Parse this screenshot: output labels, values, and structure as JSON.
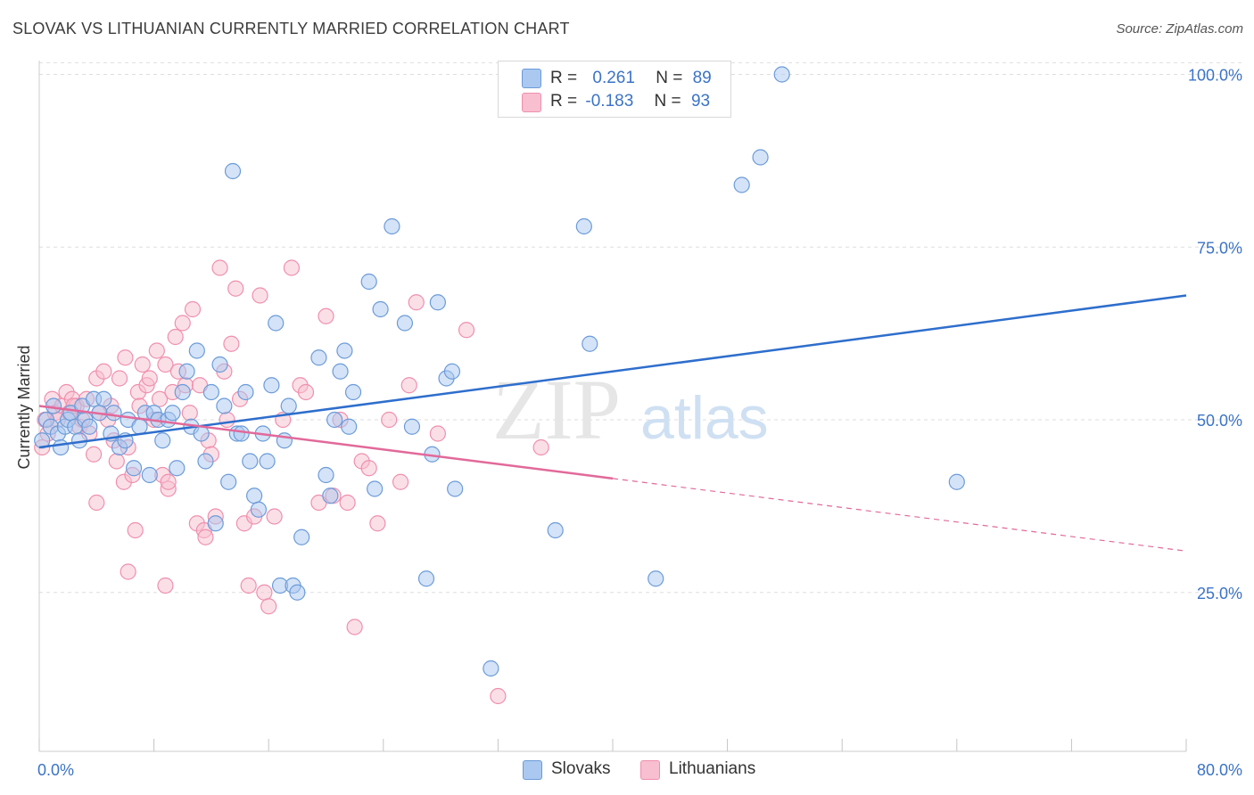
{
  "title": "SLOVAK VS LITHUANIAN CURRENTLY MARRIED CORRELATION CHART",
  "source": "Source: ZipAtlas.com",
  "watermark": {
    "zip": "ZIP",
    "atlas": "atlas"
  },
  "legend_stats": [
    {
      "r_label": "R =",
      "r_value": "0.261",
      "n_label": "N =",
      "n_value": "89"
    },
    {
      "r_label": "R =",
      "r_value": "-0.183",
      "n_label": "N =",
      "n_value": "93"
    }
  ],
  "colors": {
    "slovaks_fill": "#aac8f0",
    "slovaks_stroke": "#6b9bd9",
    "slovaks_line": "#2e6ecc",
    "lithuanians_fill": "#f7bfd0",
    "lithuanians_stroke": "#ef8fae",
    "lithuanians_line": "#e2699a",
    "tick_label": "#3b73c6",
    "grid": "#dedede"
  },
  "chart_data": {
    "type": "scatter",
    "title": "SLOVAK VS LITHUANIAN CURRENTLY MARRIED CORRELATION CHART",
    "xlabel": "",
    "ylabel": "Currently Married",
    "xlim": [
      0,
      80
    ],
    "ylim": [
      2,
      102
    ],
    "x_tick_labels": [
      "0.0%",
      "80.0%"
    ],
    "y_ticks": [
      25,
      50,
      75,
      100
    ],
    "y_tick_labels": [
      "25.0%",
      "50.0%",
      "75.0%",
      "100.0%"
    ],
    "grid": true,
    "legend_position": "top-center",
    "series": [
      {
        "name": "Slovaks",
        "r": 0.261,
        "n": 89,
        "trend": {
          "x": [
            0,
            80
          ],
          "y": [
            46,
            68
          ]
        },
        "points": [
          [
            0.2,
            47
          ],
          [
            0.5,
            50
          ],
          [
            0.8,
            49
          ],
          [
            1.0,
            52
          ],
          [
            1.3,
            48
          ],
          [
            1.5,
            46
          ],
          [
            1.8,
            49
          ],
          [
            2.0,
            50
          ],
          [
            2.2,
            51
          ],
          [
            2.5,
            49
          ],
          [
            2.8,
            47
          ],
          [
            3.0,
            52
          ],
          [
            3.2,
            50
          ],
          [
            3.5,
            49
          ],
          [
            3.8,
            53
          ],
          [
            4.2,
            51
          ],
          [
            4.5,
            53
          ],
          [
            5.0,
            48
          ],
          [
            5.2,
            51
          ],
          [
            5.6,
            46
          ],
          [
            6.0,
            47
          ],
          [
            6.2,
            50
          ],
          [
            6.6,
            43
          ],
          [
            7.0,
            49
          ],
          [
            7.4,
            51
          ],
          [
            7.7,
            42
          ],
          [
            8.0,
            51
          ],
          [
            8.3,
            50
          ],
          [
            8.6,
            47
          ],
          [
            9.0,
            50
          ],
          [
            9.3,
            51
          ],
          [
            9.6,
            43
          ],
          [
            10.0,
            54
          ],
          [
            10.3,
            57
          ],
          [
            10.6,
            49
          ],
          [
            11.0,
            60
          ],
          [
            11.3,
            48
          ],
          [
            11.6,
            44
          ],
          [
            12.0,
            54
          ],
          [
            12.3,
            35
          ],
          [
            12.6,
            58
          ],
          [
            12.9,
            52
          ],
          [
            13.2,
            41
          ],
          [
            13.5,
            86
          ],
          [
            13.8,
            48
          ],
          [
            14.1,
            48
          ],
          [
            14.4,
            54
          ],
          [
            14.7,
            44
          ],
          [
            15.0,
            39
          ],
          [
            15.3,
            37
          ],
          [
            15.6,
            48
          ],
          [
            15.9,
            44
          ],
          [
            16.2,
            55
          ],
          [
            16.5,
            64
          ],
          [
            16.8,
            26
          ],
          [
            17.1,
            47
          ],
          [
            17.4,
            52
          ],
          [
            17.7,
            26
          ],
          [
            18.0,
            25
          ],
          [
            18.3,
            33
          ],
          [
            19.5,
            59
          ],
          [
            20.0,
            42
          ],
          [
            20.3,
            39
          ],
          [
            20.6,
            50
          ],
          [
            21.0,
            57
          ],
          [
            21.3,
            60
          ],
          [
            21.6,
            49
          ],
          [
            21.9,
            54
          ],
          [
            23.0,
            70
          ],
          [
            23.4,
            40
          ],
          [
            23.8,
            66
          ],
          [
            24.6,
            78
          ],
          [
            25.5,
            64
          ],
          [
            26.0,
            49
          ],
          [
            27.0,
            27
          ],
          [
            27.4,
            45
          ],
          [
            27.8,
            67
          ],
          [
            28.4,
            56
          ],
          [
            28.8,
            57
          ],
          [
            29.0,
            40
          ],
          [
            31.5,
            14
          ],
          [
            36.0,
            34
          ],
          [
            38.0,
            78
          ],
          [
            38.4,
            61
          ],
          [
            43.0,
            27
          ],
          [
            49.0,
            84
          ],
          [
            50.3,
            88
          ],
          [
            51.8,
            100
          ],
          [
            64.0,
            41
          ]
        ]
      },
      {
        "name": "Lithuanians",
        "r": -0.183,
        "n": 93,
        "trend": {
          "x": [
            0,
            40
          ],
          "y": [
            52,
            41.5
          ]
        },
        "trend_dashed": {
          "x": [
            40,
            80
          ],
          "y": [
            41.5,
            31
          ]
        },
        "points": [
          [
            0.2,
            46
          ],
          [
            0.4,
            50
          ],
          [
            0.6,
            48
          ],
          [
            0.9,
            53
          ],
          [
            1.1,
            51
          ],
          [
            1.3,
            50
          ],
          [
            1.6,
            52
          ],
          [
            1.9,
            54
          ],
          [
            2.1,
            51
          ],
          [
            2.3,
            53
          ],
          [
            2.6,
            52
          ],
          [
            2.8,
            49
          ],
          [
            3.0,
            50
          ],
          [
            3.3,
            53
          ],
          [
            3.5,
            48
          ],
          [
            3.8,
            45
          ],
          [
            4.0,
            56
          ],
          [
            4.2,
            51
          ],
          [
            4.5,
            57
          ],
          [
            4.8,
            50
          ],
          [
            5.0,
            52
          ],
          [
            5.2,
            47
          ],
          [
            5.4,
            44
          ],
          [
            5.6,
            56
          ],
          [
            5.9,
            41
          ],
          [
            6.0,
            59
          ],
          [
            6.2,
            46
          ],
          [
            6.5,
            42
          ],
          [
            6.7,
            34
          ],
          [
            6.9,
            54
          ],
          [
            7.0,
            52
          ],
          [
            7.2,
            58
          ],
          [
            7.5,
            55
          ],
          [
            7.7,
            56
          ],
          [
            8.0,
            50
          ],
          [
            8.2,
            60
          ],
          [
            8.4,
            53
          ],
          [
            8.6,
            42
          ],
          [
            8.8,
            58
          ],
          [
            9.0,
            40
          ],
          [
            9.3,
            54
          ],
          [
            9.5,
            62
          ],
          [
            9.7,
            57
          ],
          [
            10.0,
            64
          ],
          [
            10.2,
            55
          ],
          [
            10.5,
            51
          ],
          [
            10.7,
            66
          ],
          [
            11.0,
            35
          ],
          [
            11.2,
            55
          ],
          [
            11.5,
            34
          ],
          [
            11.8,
            47
          ],
          [
            12.0,
            45
          ],
          [
            12.3,
            36
          ],
          [
            12.6,
            72
          ],
          [
            12.9,
            57
          ],
          [
            13.1,
            50
          ],
          [
            13.4,
            61
          ],
          [
            13.7,
            69
          ],
          [
            14.0,
            53
          ],
          [
            14.3,
            35
          ],
          [
            14.6,
            26
          ],
          [
            15.0,
            36
          ],
          [
            15.4,
            68
          ],
          [
            15.7,
            25
          ],
          [
            16.0,
            23
          ],
          [
            16.4,
            36
          ],
          [
            17.0,
            50
          ],
          [
            17.6,
            72
          ],
          [
            18.2,
            55
          ],
          [
            18.6,
            54
          ],
          [
            19.5,
            38
          ],
          [
            20.0,
            65
          ],
          [
            20.5,
            39
          ],
          [
            21.0,
            50
          ],
          [
            21.5,
            38
          ],
          [
            22.0,
            20
          ],
          [
            22.5,
            44
          ],
          [
            23.0,
            43
          ],
          [
            23.6,
            35
          ],
          [
            24.4,
            50
          ],
          [
            25.2,
            41
          ],
          [
            25.8,
            55
          ],
          [
            26.3,
            67
          ],
          [
            27.8,
            48
          ],
          [
            29.8,
            63
          ],
          [
            32.0,
            10
          ],
          [
            35.0,
            46
          ],
          [
            4.0,
            38
          ],
          [
            6.2,
            28
          ],
          [
            8.8,
            26
          ],
          [
            11.6,
            33
          ],
          [
            9.0,
            41
          ],
          [
            2.4,
            52
          ]
        ]
      }
    ]
  }
}
